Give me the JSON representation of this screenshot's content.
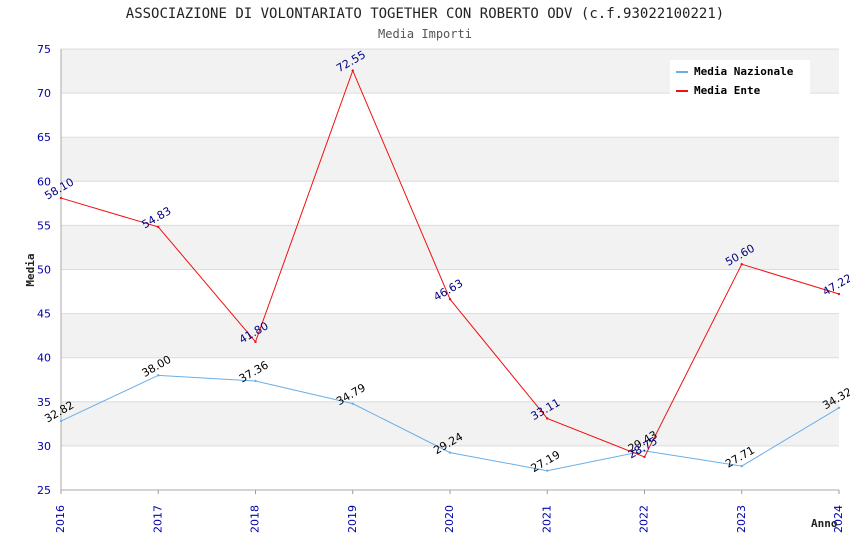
{
  "chart_data": {
    "type": "line",
    "title": "ASSOCIAZIONE DI VOLONTARIATO TOGETHER CON ROBERTO ODV (c.f.93022100221)",
    "subtitle": "Media Importi",
    "xlabel": "Anno",
    "ylabel": "Media",
    "x": [
      "2016",
      "2017",
      "2018",
      "2019",
      "2020",
      "2021",
      "2022",
      "2023",
      "2024"
    ],
    "ylim": [
      25,
      75
    ],
    "yticks": [
      25,
      30,
      35,
      40,
      45,
      50,
      55,
      60,
      65,
      70,
      75
    ],
    "grid": true,
    "legend_position": "top-right",
    "series": [
      {
        "name": "Media Nazionale",
        "color": "#6aaee6",
        "label_color": "#000000",
        "values": [
          32.82,
          38.0,
          37.36,
          34.79,
          29.24,
          27.19,
          29.43,
          27.71,
          34.32
        ],
        "labels": [
          "32.82",
          "38.00",
          "37.36",
          "34.79",
          "29.24",
          "27.19",
          "29.43",
          "27.71",
          "34.32"
        ]
      },
      {
        "name": "Media Ente",
        "color": "#ee1111",
        "label_color": "#000080",
        "values": [
          58.1,
          54.83,
          41.8,
          72.55,
          46.63,
          33.11,
          28.75,
          50.6,
          47.22
        ],
        "labels": [
          "58.10",
          "54.83",
          "41.80",
          "72.55",
          "46.63",
          "33.11",
          "28.75",
          "50.60",
          "47.22"
        ]
      }
    ]
  }
}
